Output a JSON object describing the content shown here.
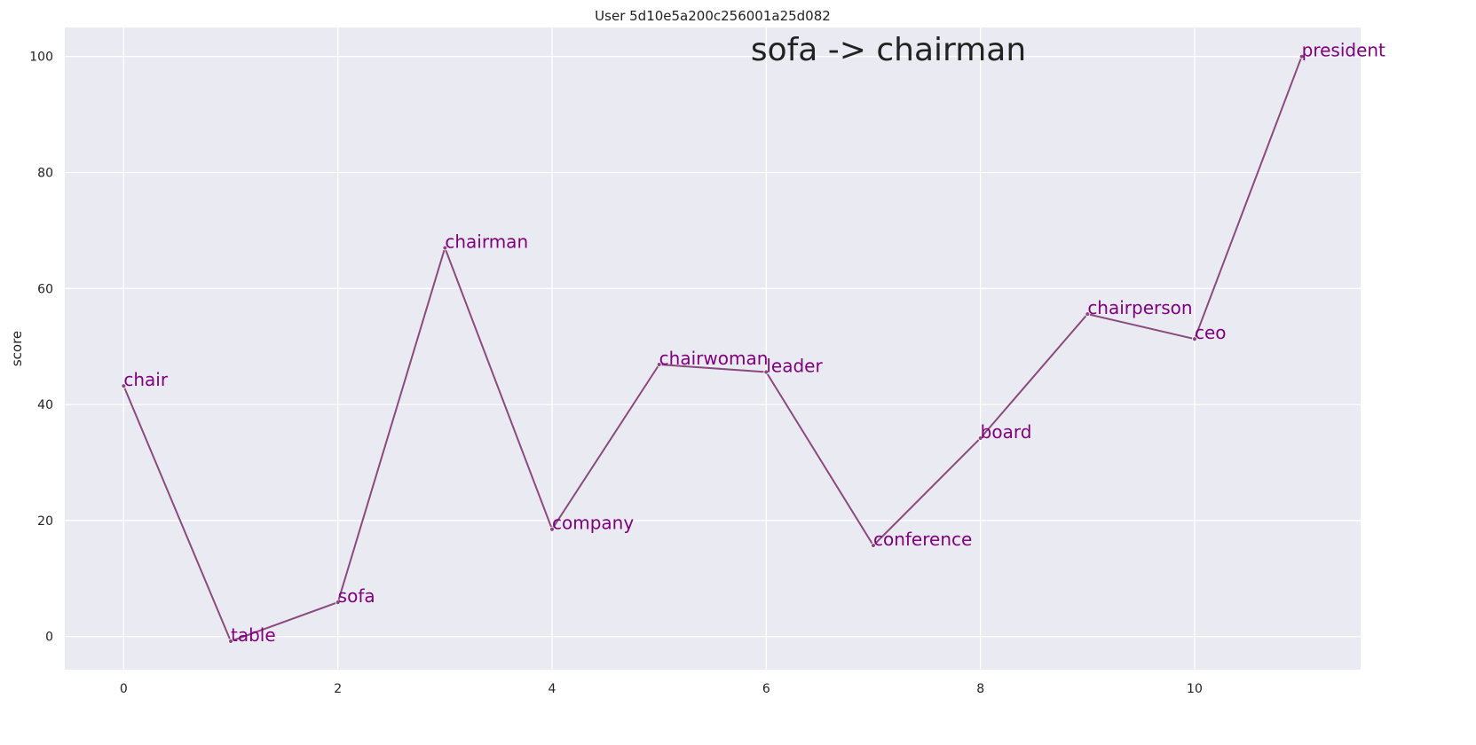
{
  "chart_data": {
    "type": "line",
    "title": "User 5d10e5a200c256001a25d082",
    "annotation": "sofa -> chairman",
    "xlabel": "",
    "ylabel": "score",
    "xlim": [
      -0.55,
      11.55
    ],
    "ylim": [
      -5.7,
      105
    ],
    "xticks": [
      0,
      2,
      4,
      6,
      8,
      10
    ],
    "yticks": [
      0,
      20,
      40,
      60,
      80,
      100
    ],
    "grid": true,
    "colors": {
      "background": "#eaeaf2",
      "grid": "#ffffff",
      "line": "#8b4a7e",
      "label": "#800080"
    },
    "series": [
      {
        "x": [
          0,
          1,
          2,
          3,
          4,
          5,
          6,
          7,
          8,
          9,
          10,
          11
        ],
        "values": [
          43.2,
          -0.8,
          5.9,
          67.0,
          18.5,
          46.9,
          45.6,
          15.7,
          34.2,
          55.6,
          51.3,
          100.0
        ],
        "labels": [
          "chair",
          "table",
          "sofa",
          "chairman",
          "company",
          "chairwoman",
          "leader",
          "conference",
          "board",
          "chairperson",
          "ceo",
          "president"
        ]
      }
    ]
  }
}
